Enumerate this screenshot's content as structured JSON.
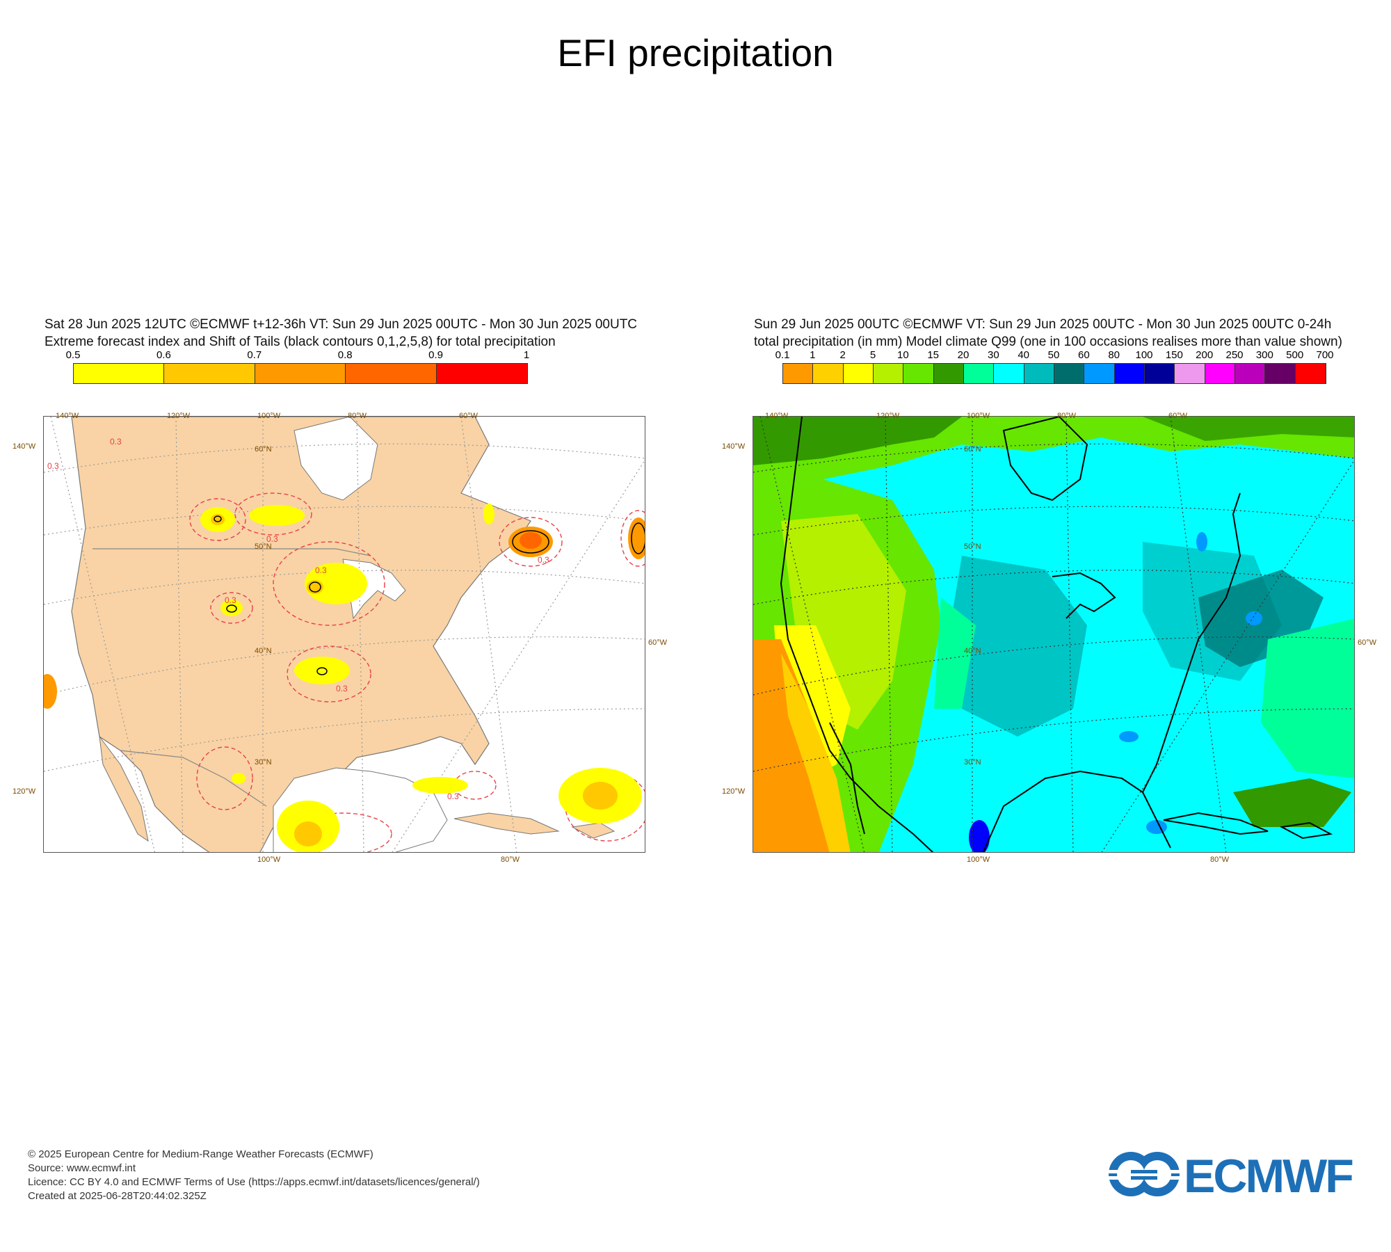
{
  "title": "EFI precipitation",
  "left_panel": {
    "header_line1": "Sat 28 Jun 2025 12UTC ©ECMWF t+12-36h  VT: Sun 29 Jun 2025 00UTC - Mon 30 Jun 2025 00UTC",
    "header_line2": "Extreme forecast index and Shift of Tails (black contours 0,1,2,5,8) for total precipitation",
    "colorbar": {
      "labels": [
        "0.5",
        "0.6",
        "0.7",
        "0.8",
        "0.9",
        "1"
      ],
      "colors": [
        "#ffff00",
        "#ffc800",
        "#ff9900",
        "#ff6600",
        "#ff0000"
      ]
    },
    "lon_labels_top": [
      "140°W",
      "120°W",
      "100°W",
      "80°W",
      "60°W"
    ],
    "lon_labels_bottom": [
      "100°W",
      "80°W"
    ],
    "lat_labels_left": [
      "140°W",
      "120°W"
    ],
    "lat_labels_right": [
      "60°W"
    ],
    "lat_labels_inner": [
      "60°N",
      "50°N",
      "40°N",
      "30°N"
    ],
    "contour_label": "0.3"
  },
  "right_panel": {
    "header_line1": "Sun 29 Jun 2025 00UTC ©ECMWF VT: Sun 29 Jun 2025 00UTC - Mon 30 Jun 2025 00UTC   0-24h",
    "header_line2": "total precipitation (in mm)  Model climate Q99 (one in 100 occasions realises more than value shown)",
    "colorbar": {
      "labels": [
        "0.1",
        "1",
        "2",
        "5",
        "10",
        "15",
        "20",
        "30",
        "40",
        "50",
        "60",
        "80",
        "100",
        "150",
        "200",
        "250",
        "300",
        "500",
        "700"
      ],
      "colors": [
        "#ff9900",
        "#ffd000",
        "#ffff00",
        "#b4f000",
        "#66e600",
        "#339900",
        "#00ff99",
        "#00ffff",
        "#00bbbb",
        "#006d6d",
        "#0099ff",
        "#0000ff",
        "#000099",
        "#ee99ee",
        "#ff00ff",
        "#bb00bb",
        "#660066",
        "#ff0000"
      ]
    },
    "lon_labels_top": [
      "140°W",
      "120°W",
      "100°W",
      "80°W",
      "60°W"
    ],
    "lon_labels_bottom": [
      "100°W",
      "80°W"
    ],
    "lat_labels_left": [
      "140°W",
      "120°W"
    ],
    "lat_labels_right": [
      "60°W"
    ],
    "lat_labels_inner": [
      "60°N",
      "50°N",
      "40°N",
      "30°N"
    ]
  },
  "footer": {
    "line1": "© 2025 European Centre for Medium-Range Weather Forecasts (ECMWF)",
    "line2": "Source: www.ecmwf.int",
    "line3": "Licence: CC BY 4.0 and ECMWF Terms of Use (https://apps.ecmwf.int/datasets/licences/general/)",
    "line4": "Created at 2025-06-28T20:44:02.325Z"
  },
  "logo_text": "ECMWF",
  "colors": {
    "logo": "#1d70b7",
    "land_left": "#f9d3a5",
    "sea": "#ffffff"
  }
}
